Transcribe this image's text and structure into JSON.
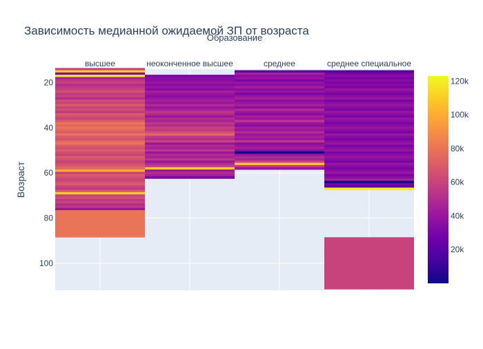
{
  "chart_data": {
    "type": "heatmap",
    "title": "Зависимость медианной ожидаемой ЗП от возраста",
    "facet_title": "Образование",
    "ylabel": "Возраст",
    "y_range": [
      112,
      14
    ],
    "y_ticks": [
      20,
      40,
      60,
      80,
      100
    ],
    "colorbar": {
      "min": 0,
      "max": 123000,
      "ticks": [
        20000,
        40000,
        60000,
        80000,
        100000,
        120000
      ],
      "tick_labels": [
        "20k",
        "40k",
        "60k",
        "80k",
        "100k",
        "120k"
      ]
    },
    "panels": [
      {
        "label": "высшее",
        "rows": [
          [
            14,
            60000
          ],
          [
            15,
            110000
          ],
          [
            16,
            30000
          ],
          [
            17,
            120000
          ],
          [
            18,
            45000
          ],
          [
            19,
            55000
          ],
          [
            20,
            60000
          ],
          [
            21,
            50000
          ],
          [
            22,
            55000
          ],
          [
            23,
            60000
          ],
          [
            24,
            65000
          ],
          [
            25,
            55000
          ],
          [
            26,
            60000
          ],
          [
            27,
            50000
          ],
          [
            28,
            65000
          ],
          [
            29,
            60000
          ],
          [
            30,
            70000
          ],
          [
            31,
            60000
          ],
          [
            32,
            65000
          ],
          [
            33,
            55000
          ],
          [
            34,
            70000
          ],
          [
            35,
            65000
          ],
          [
            36,
            60000
          ],
          [
            37,
            70000
          ],
          [
            38,
            80000
          ],
          [
            39,
            75000
          ],
          [
            40,
            80000
          ],
          [
            41,
            75000
          ],
          [
            42,
            70000
          ],
          [
            43,
            80000
          ],
          [
            44,
            70000
          ],
          [
            45,
            65000
          ],
          [
            46,
            75000
          ],
          [
            47,
            80000
          ],
          [
            48,
            70000
          ],
          [
            49,
            65000
          ],
          [
            50,
            70000
          ],
          [
            51,
            65000
          ],
          [
            52,
            60000
          ],
          [
            53,
            70000
          ],
          [
            54,
            65000
          ],
          [
            55,
            60000
          ],
          [
            56,
            65000
          ],
          [
            57,
            70000
          ],
          [
            58,
            75000
          ],
          [
            59,
            100000
          ],
          [
            60,
            60000
          ],
          [
            61,
            70000
          ],
          [
            62,
            65000
          ],
          [
            63,
            60000
          ],
          [
            64,
            65000
          ],
          [
            65,
            70000
          ],
          [
            66,
            60000
          ],
          [
            67,
            55000
          ],
          [
            68,
            70000
          ],
          [
            69,
            110000
          ],
          [
            70,
            60000
          ],
          [
            71,
            65000
          ],
          [
            72,
            55000
          ],
          [
            73,
            60000
          ],
          [
            74,
            50000
          ],
          [
            75,
            55000
          ],
          [
            76,
            40000
          ],
          [
            77,
            80000
          ],
          [
            78,
            80000
          ],
          [
            79,
            80000
          ],
          [
            80,
            80000
          ],
          [
            81,
            80000
          ],
          [
            82,
            80000
          ],
          [
            83,
            80000
          ],
          [
            84,
            80000
          ],
          [
            85,
            80000
          ],
          [
            86,
            80000
          ],
          [
            87,
            80000
          ],
          [
            88,
            80000
          ]
        ]
      },
      {
        "label": "неоконченное высшее",
        "rows": [
          [
            17,
            30000
          ],
          [
            18,
            35000
          ],
          [
            19,
            35000
          ],
          [
            20,
            40000
          ],
          [
            21,
            35000
          ],
          [
            22,
            40000
          ],
          [
            23,
            35000
          ],
          [
            24,
            45000
          ],
          [
            25,
            40000
          ],
          [
            26,
            35000
          ],
          [
            27,
            40000
          ],
          [
            28,
            45000
          ],
          [
            29,
            40000
          ],
          [
            30,
            50000
          ],
          [
            31,
            40000
          ],
          [
            32,
            45000
          ],
          [
            33,
            55000
          ],
          [
            34,
            50000
          ],
          [
            35,
            40000
          ],
          [
            36,
            50000
          ],
          [
            37,
            45000
          ],
          [
            38,
            55000
          ],
          [
            39,
            50000
          ],
          [
            40,
            60000
          ],
          [
            41,
            55000
          ],
          [
            42,
            65000
          ],
          [
            43,
            75000
          ],
          [
            44,
            55000
          ],
          [
            45,
            50000
          ],
          [
            46,
            60000
          ],
          [
            47,
            40000
          ],
          [
            48,
            50000
          ],
          [
            49,
            45000
          ],
          [
            50,
            55000
          ],
          [
            51,
            40000
          ],
          [
            52,
            50000
          ],
          [
            53,
            45000
          ],
          [
            54,
            55000
          ],
          [
            55,
            40000
          ],
          [
            56,
            50000
          ],
          [
            57,
            60000
          ],
          [
            58,
            110000
          ],
          [
            59,
            40000
          ],
          [
            60,
            50000
          ],
          [
            61,
            45000
          ],
          [
            62,
            30000
          ]
        ]
      },
      {
        "label": "среднее",
        "rows": [
          [
            15,
            18000
          ],
          [
            16,
            45000
          ],
          [
            17,
            35000
          ],
          [
            18,
            40000
          ],
          [
            19,
            30000
          ],
          [
            20,
            40000
          ],
          [
            21,
            35000
          ],
          [
            22,
            45000
          ],
          [
            23,
            35000
          ],
          [
            24,
            40000
          ],
          [
            25,
            30000
          ],
          [
            26,
            40000
          ],
          [
            27,
            45000
          ],
          [
            28,
            35000
          ],
          [
            29,
            40000
          ],
          [
            30,
            45000
          ],
          [
            31,
            35000
          ],
          [
            32,
            50000
          ],
          [
            33,
            40000
          ],
          [
            34,
            35000
          ],
          [
            35,
            45000
          ],
          [
            36,
            40000
          ],
          [
            37,
            55000
          ],
          [
            38,
            40000
          ],
          [
            39,
            35000
          ],
          [
            40,
            45000
          ],
          [
            41,
            40000
          ],
          [
            42,
            50000
          ],
          [
            43,
            40000
          ],
          [
            44,
            45000
          ],
          [
            45,
            40000
          ],
          [
            46,
            55000
          ],
          [
            47,
            35000
          ],
          [
            48,
            40000
          ],
          [
            49,
            45000
          ],
          [
            50,
            35000
          ],
          [
            51,
            0
          ],
          [
            52,
            40000
          ],
          [
            53,
            50000
          ],
          [
            54,
            45000
          ],
          [
            55,
            60000
          ],
          [
            56,
            110000
          ],
          [
            57,
            55000
          ],
          [
            58,
            40000
          ]
        ]
      },
      {
        "label": "среднее специальное",
        "rows": [
          [
            15,
            15000
          ],
          [
            16,
            30000
          ],
          [
            17,
            35000
          ],
          [
            18,
            30000
          ],
          [
            19,
            35000
          ],
          [
            20,
            30000
          ],
          [
            21,
            35000
          ],
          [
            22,
            30000
          ],
          [
            23,
            40000
          ],
          [
            24,
            35000
          ],
          [
            25,
            30000
          ],
          [
            26,
            35000
          ],
          [
            27,
            40000
          ],
          [
            28,
            30000
          ],
          [
            29,
            35000
          ],
          [
            30,
            40000
          ],
          [
            31,
            35000
          ],
          [
            32,
            30000
          ],
          [
            33,
            40000
          ],
          [
            34,
            35000
          ],
          [
            35,
            30000
          ],
          [
            36,
            40000
          ],
          [
            37,
            35000
          ],
          [
            38,
            30000
          ],
          [
            39,
            35000
          ],
          [
            40,
            40000
          ],
          [
            41,
            35000
          ],
          [
            42,
            30000
          ],
          [
            43,
            40000
          ],
          [
            44,
            35000
          ],
          [
            45,
            30000
          ],
          [
            46,
            35000
          ],
          [
            47,
            40000
          ],
          [
            48,
            30000
          ],
          [
            49,
            35000
          ],
          [
            50,
            40000
          ],
          [
            51,
            30000
          ],
          [
            52,
            35000
          ],
          [
            53,
            40000
          ],
          [
            54,
            35000
          ],
          [
            55,
            30000
          ],
          [
            56,
            40000
          ],
          [
            57,
            35000
          ],
          [
            58,
            30000
          ],
          [
            59,
            35000
          ],
          [
            60,
            40000
          ],
          [
            61,
            30000
          ],
          [
            62,
            35000
          ],
          [
            63,
            45000
          ],
          [
            64,
            0
          ],
          [
            65,
            30000
          ],
          [
            66,
            20000
          ],
          [
            67,
            120000
          ],
          [
            89,
            60000
          ],
          [
            90,
            60000
          ],
          [
            91,
            60000
          ],
          [
            92,
            60000
          ],
          [
            93,
            60000
          ],
          [
            94,
            60000
          ],
          [
            95,
            60000
          ],
          [
            96,
            60000
          ],
          [
            97,
            60000
          ],
          [
            98,
            60000
          ],
          [
            99,
            60000
          ],
          [
            100,
            60000
          ],
          [
            101,
            60000
          ],
          [
            102,
            60000
          ],
          [
            103,
            60000
          ],
          [
            104,
            60000
          ],
          [
            105,
            60000
          ],
          [
            106,
            60000
          ],
          [
            107,
            60000
          ],
          [
            108,
            60000
          ],
          [
            109,
            60000
          ],
          [
            110,
            60000
          ],
          [
            111,
            60000
          ]
        ]
      }
    ]
  }
}
